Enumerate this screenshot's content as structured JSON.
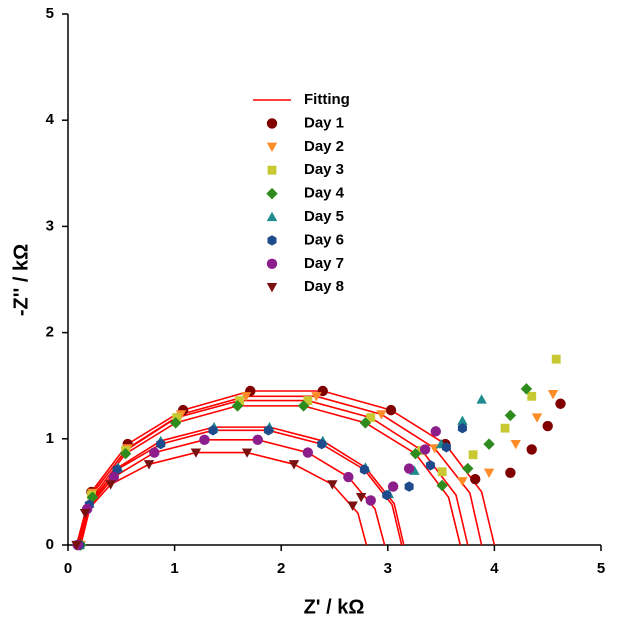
{
  "chart_data": {
    "type": "scatter",
    "xlabel": "Z' / kΩ",
    "ylabel": "-Z'' / kΩ",
    "xlim": [
      0,
      5
    ],
    "ylim": [
      0,
      5
    ],
    "xticks": [
      0,
      1,
      2,
      3,
      4,
      5
    ],
    "yticks": [
      0,
      1,
      2,
      3,
      4,
      5
    ],
    "legend": "top-center",
    "series": [
      {
        "name": "Fitting",
        "color": "#ff0000",
        "x": [
          0.1,
          0.22,
          0.56,
          1.08,
          1.71,
          2.39,
          3.03,
          3.54,
          3.88,
          4.0,
          null,
          0.12,
          0.23,
          0.56,
          1.06,
          1.67,
          2.33,
          2.94,
          3.44,
          3.77,
          3.88,
          null,
          0.11,
          0.22,
          0.54,
          1.02,
          1.61,
          2.25,
          2.84,
          3.32,
          3.64,
          3.75,
          null,
          0.12,
          0.23,
          0.54,
          1.01,
          1.59,
          2.21,
          2.79,
          3.26,
          3.57,
          3.68,
          null,
          0.11,
          0.2,
          0.47,
          0.87,
          1.37,
          1.89,
          2.39,
          2.79,
          3.06,
          3.15,
          null,
          0.11,
          0.2,
          0.46,
          0.87,
          1.36,
          1.88,
          2.38,
          2.78,
          3.04,
          3.13,
          null,
          0.09,
          0.18,
          0.43,
          0.81,
          1.28,
          1.78,
          2.25,
          2.63,
          2.88,
          2.97,
          null,
          0.08,
          0.16,
          0.4,
          0.76,
          1.2,
          1.68,
          2.12,
          2.48,
          2.72,
          2.8
        ],
        "y": [
          0,
          0.5,
          0.95,
          1.27,
          1.45,
          1.45,
          1.27,
          0.95,
          0.5,
          0,
          null,
          0,
          0.49,
          0.91,
          1.23,
          1.4,
          1.4,
          1.23,
          0.91,
          0.49,
          0,
          null,
          0,
          0.47,
          0.89,
          1.2,
          1.36,
          1.36,
          1.2,
          0.89,
          0.47,
          0,
          null,
          0,
          0.45,
          0.86,
          1.15,
          1.31,
          1.31,
          1.15,
          0.86,
          0.45,
          0,
          null,
          0,
          0.39,
          0.73,
          0.98,
          1.11,
          1.11,
          0.98,
          0.73,
          0.39,
          0,
          null,
          0,
          0.38,
          0.71,
          0.95,
          1.08,
          1.08,
          0.95,
          0.71,
          0.38,
          0,
          null,
          0,
          0.34,
          0.64,
          0.87,
          0.99,
          0.99,
          0.87,
          0.64,
          0.34,
          0,
          null,
          0,
          0.3,
          0.57,
          0.76,
          0.87,
          0.87,
          0.76,
          0.57,
          0.3,
          0
        ]
      },
      {
        "name": "Day 1",
        "color": "#800000",
        "marker": "circle",
        "x": [
          0.1,
          0.22,
          0.56,
          1.08,
          1.71,
          2.39,
          3.03,
          3.54,
          3.82,
          4.15,
          4.35,
          4.5,
          4.62
        ],
        "y": [
          0,
          0.5,
          0.95,
          1.27,
          1.45,
          1.45,
          1.27,
          0.95,
          0.62,
          0.68,
          0.9,
          1.12,
          1.33
        ]
      },
      {
        "name": "Day 2",
        "color": "#ff8c28",
        "marker": "triangle-down",
        "x": [
          0.12,
          0.23,
          0.56,
          1.06,
          1.67,
          2.33,
          2.94,
          3.44,
          3.7,
          3.95,
          4.2,
          4.4,
          4.55
        ],
        "y": [
          0,
          0.49,
          0.91,
          1.23,
          1.4,
          1.4,
          1.23,
          0.91,
          0.6,
          0.68,
          0.95,
          1.2,
          1.42
        ]
      },
      {
        "name": "Day 3",
        "color": "#c8c832",
        "marker": "square",
        "x": [
          0.11,
          0.22,
          0.54,
          1.02,
          1.61,
          2.25,
          2.84,
          3.32,
          3.51,
          3.8,
          4.1,
          4.35,
          4.58
        ],
        "y": [
          0,
          0.47,
          0.89,
          1.2,
          1.36,
          1.36,
          1.2,
          0.89,
          0.69,
          0.85,
          1.1,
          1.4,
          1.75
        ]
      },
      {
        "name": "Day 4",
        "color": "#2e8b1e",
        "marker": "diamond",
        "x": [
          0.12,
          0.23,
          0.54,
          1.01,
          1.59,
          2.21,
          2.79,
          3.26,
          3.51,
          3.75,
          3.95,
          4.15,
          4.3
        ],
        "y": [
          0,
          0.45,
          0.86,
          1.15,
          1.31,
          1.31,
          1.15,
          0.86,
          0.56,
          0.72,
          0.95,
          1.22,
          1.47
        ]
      },
      {
        "name": "Day 5",
        "color": "#1e8c8c",
        "marker": "triangle-up",
        "x": [
          0.11,
          0.2,
          0.47,
          0.87,
          1.37,
          1.89,
          2.39,
          2.79,
          3.01,
          3.25,
          3.5,
          3.7,
          3.88
        ],
        "y": [
          0,
          0.39,
          0.73,
          0.98,
          1.11,
          1.11,
          0.98,
          0.73,
          0.48,
          0.7,
          0.95,
          1.17,
          1.37
        ]
      },
      {
        "name": "Day 6",
        "color": "#1e4b8c",
        "marker": "hexagon",
        "x": [
          0.11,
          0.2,
          0.46,
          0.87,
          1.36,
          1.88,
          2.38,
          2.78,
          2.99,
          3.2,
          3.4,
          3.55,
          3.7
        ],
        "y": [
          0,
          0.38,
          0.71,
          0.95,
          1.08,
          1.08,
          0.95,
          0.71,
          0.47,
          0.55,
          0.75,
          0.92,
          1.1
        ]
      },
      {
        "name": "Day 7",
        "color": "#8c1e8c",
        "marker": "circle",
        "x": [
          0.09,
          0.18,
          0.43,
          0.81,
          1.28,
          1.78,
          2.25,
          2.63,
          2.84,
          3.05,
          3.2,
          3.35,
          3.45
        ],
        "y": [
          0,
          0.34,
          0.64,
          0.87,
          0.99,
          0.99,
          0.87,
          0.64,
          0.42,
          0.55,
          0.72,
          0.9,
          1.07
        ]
      },
      {
        "name": "Day 8",
        "color": "#7a1010",
        "marker": "triangle-down",
        "x": [
          0.08,
          0.16,
          0.4,
          0.76,
          1.2,
          1.68,
          2.12,
          2.48,
          2.67,
          2.75
        ],
        "y": [
          0,
          0.3,
          0.57,
          0.76,
          0.87,
          0.87,
          0.76,
          0.57,
          0.37,
          0.45
        ]
      }
    ]
  }
}
